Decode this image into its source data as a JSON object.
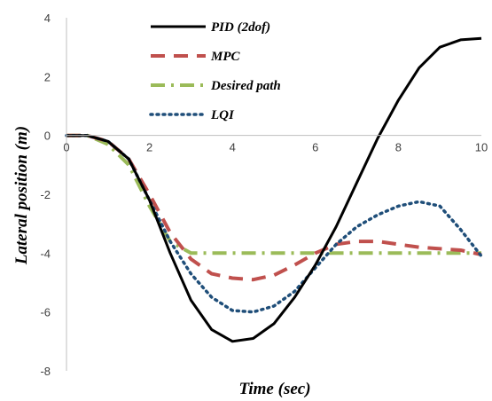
{
  "chart_data": {
    "type": "line",
    "xlabel": "Time (sec)",
    "ylabel": "Lateral position (m)",
    "xlim": [
      0,
      10
    ],
    "ylim": [
      -8,
      4
    ],
    "x_ticks": [
      "0",
      "2",
      "4",
      "6",
      "8",
      "10"
    ],
    "y_ticks": [
      "4",
      "2",
      "0",
      "-2",
      "-4",
      "-6",
      "-8"
    ],
    "grid": false,
    "legend_position": "top-center",
    "series": [
      {
        "name": "PID (2dof)",
        "color": "#000000",
        "style": "solid",
        "x": [
          0,
          0.5,
          1,
          1.5,
          2,
          2.5,
          3,
          3.5,
          4,
          4.5,
          5,
          5.5,
          6,
          6.5,
          7,
          7.5,
          8,
          8.5,
          9,
          9.5,
          10
        ],
        "y": [
          0,
          0,
          -0.2,
          -0.8,
          -2.2,
          -4,
          -5.6,
          -6.6,
          -7,
          -6.9,
          -6.4,
          -5.5,
          -4.4,
          -3.1,
          -1.6,
          -0.1,
          1.2,
          2.3,
          3.0,
          3.25,
          3.3
        ]
      },
      {
        "name": "MPC",
        "color": "#c0504d",
        "style": "dashed",
        "x": [
          0,
          0.5,
          1,
          1.5,
          2,
          2.5,
          3,
          3.5,
          4,
          4.5,
          5,
          5.5,
          6,
          6.5,
          7,
          7.5,
          8,
          8.5,
          9,
          9.5,
          10
        ],
        "y": [
          0,
          0,
          -0.2,
          -0.8,
          -2.0,
          -3.3,
          -4.2,
          -4.7,
          -4.85,
          -4.9,
          -4.75,
          -4.4,
          -4.0,
          -3.7,
          -3.6,
          -3.6,
          -3.7,
          -3.8,
          -3.85,
          -3.9,
          -4.05
        ]
      },
      {
        "name": "Desired path",
        "color": "#9bbb59",
        "style": "dash-dot",
        "x": [
          0,
          0.5,
          1,
          1.5,
          2,
          2.5,
          3,
          3.5,
          4,
          5,
          6,
          7,
          8,
          9,
          10
        ],
        "y": [
          0,
          0,
          -0.3,
          -1.0,
          -2.4,
          -3.6,
          -4,
          -4,
          -4,
          -4,
          -4,
          -4,
          -4,
          -4,
          -4
        ]
      },
      {
        "name": "LQI",
        "color": "#1f4e79",
        "style": "dotted",
        "x": [
          0,
          0.5,
          1,
          1.5,
          2,
          2.5,
          3,
          3.5,
          4,
          4.5,
          5,
          5.5,
          6,
          6.5,
          7,
          7.5,
          8,
          8.5,
          9,
          9.5,
          10
        ],
        "y": [
          0,
          0,
          -0.2,
          -0.8,
          -2.2,
          -3.6,
          -4.7,
          -5.5,
          -5.95,
          -6.0,
          -5.8,
          -5.3,
          -4.5,
          -3.7,
          -3.1,
          -2.7,
          -2.4,
          -2.25,
          -2.4,
          -3.2,
          -4.1
        ]
      }
    ]
  }
}
